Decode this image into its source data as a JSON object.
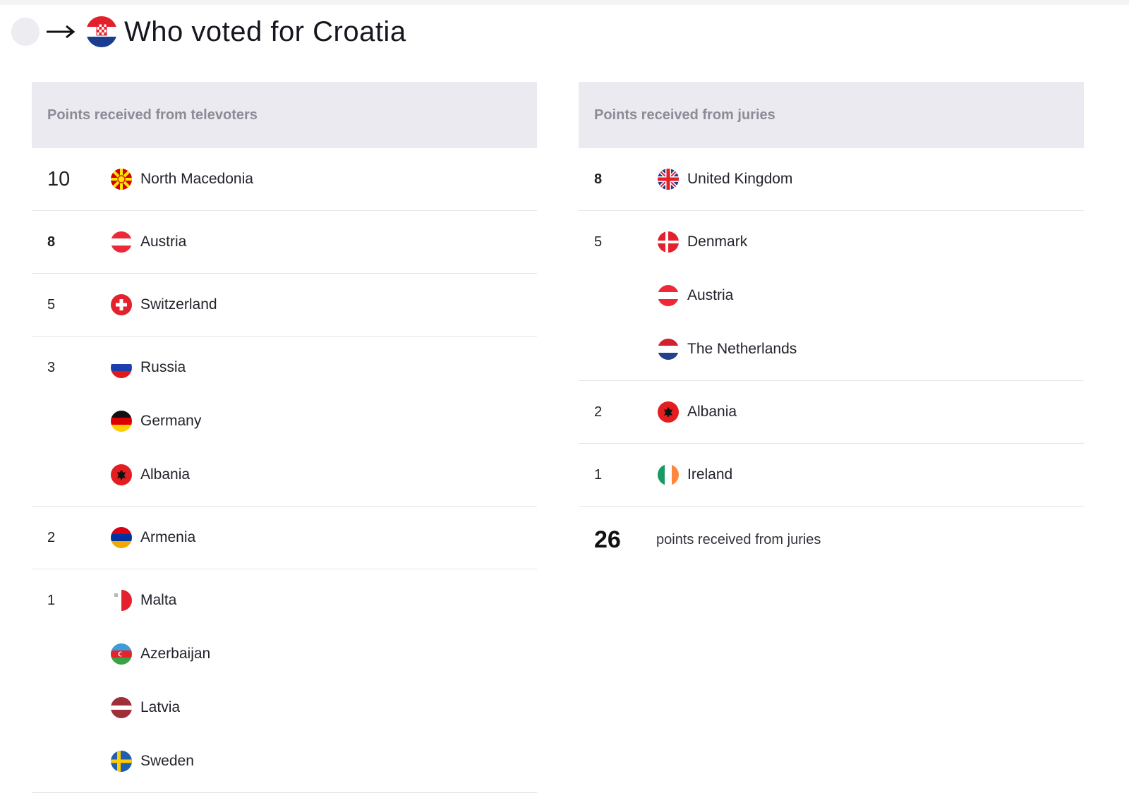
{
  "header": {
    "title": "Who voted for Croatia",
    "icons": [
      "user-avatar",
      "arrow-right-icon",
      "croatia-flag-icon"
    ]
  },
  "televoters": {
    "heading": "Points received from televoters",
    "groups": [
      {
        "points": "10",
        "countries": [
          {
            "name": "North Macedonia",
            "flag": "north-macedonia"
          }
        ]
      },
      {
        "points": "8",
        "countries": [
          {
            "name": "Austria",
            "flag": "austria"
          }
        ]
      },
      {
        "points": "5",
        "countries": [
          {
            "name": "Switzerland",
            "flag": "switzerland"
          }
        ]
      },
      {
        "points": "3",
        "countries": [
          {
            "name": "Russia",
            "flag": "russia"
          },
          {
            "name": "Germany",
            "flag": "germany"
          },
          {
            "name": "Albania",
            "flag": "albania"
          }
        ]
      },
      {
        "points": "2",
        "countries": [
          {
            "name": "Armenia",
            "flag": "armenia"
          }
        ]
      },
      {
        "points": "1",
        "countries": [
          {
            "name": "Malta",
            "flag": "malta"
          },
          {
            "name": "Azerbaijan",
            "flag": "azerbaijan"
          },
          {
            "name": "Latvia",
            "flag": "latvia"
          },
          {
            "name": "Sweden",
            "flag": "sweden"
          }
        ]
      }
    ]
  },
  "juries": {
    "heading": "Points received from juries",
    "groups": [
      {
        "points": "8",
        "countries": [
          {
            "name": "United Kingdom",
            "flag": "united-kingdom"
          }
        ]
      },
      {
        "points": "5",
        "countries": [
          {
            "name": "Denmark",
            "flag": "denmark"
          },
          {
            "name": "Austria",
            "flag": "austria"
          },
          {
            "name": "The Netherlands",
            "flag": "netherlands"
          }
        ]
      },
      {
        "points": "2",
        "countries": [
          {
            "name": "Albania",
            "flag": "albania"
          }
        ]
      },
      {
        "points": "1",
        "countries": [
          {
            "name": "Ireland",
            "flag": "ireland"
          }
        ]
      }
    ],
    "total": {
      "value": "26",
      "label": "points received from juries"
    }
  },
  "colors": {
    "panel_header_bg": "#eaeaf0",
    "panel_header_text": "#8c8c97",
    "divider": "#e4e4ea"
  }
}
